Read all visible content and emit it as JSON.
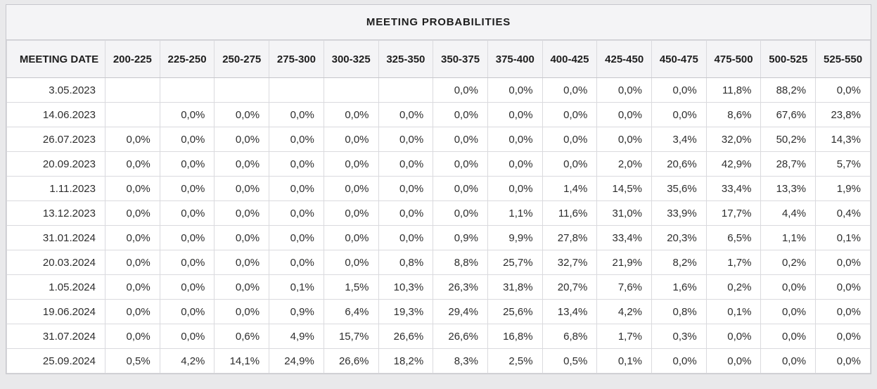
{
  "panel": {
    "title": "MEETING PROBABILITIES"
  },
  "colors": {
    "mode_highlight_cyan": "#c9eef7",
    "band_highlight_yellow": "#f5f2d2",
    "header_background": "#f4f4f6",
    "page_background": "#e9e9eb"
  },
  "table": {
    "date_column_header": "MEETING DATE",
    "rate_range_headers": [
      "200-225",
      "225-250",
      "250-275",
      "275-300",
      "300-325",
      "325-350",
      "350-375",
      "375-400",
      "400-425",
      "425-450",
      "450-475",
      "475-500",
      "500-525",
      "525-550"
    ],
    "rows": [
      {
        "date": "3.05.2023",
        "values": [
          "",
          "",
          "",
          "",
          "",
          "",
          "0,0%",
          "0,0%",
          "0,0%",
          "0,0%",
          "0,0%",
          "11,8%",
          "88,2%",
          "0,0%"
        ],
        "highlights": [
          "",
          "",
          "",
          "",
          "",
          "",
          "",
          "",
          "",
          "",
          "",
          "yellow",
          "cyan",
          ""
        ]
      },
      {
        "date": "14.06.2023",
        "values": [
          "",
          "0,0%",
          "0,0%",
          "0,0%",
          "0,0%",
          "0,0%",
          "0,0%",
          "0,0%",
          "0,0%",
          "0,0%",
          "0,0%",
          "8,6%",
          "67,6%",
          "23,8%"
        ],
        "highlights": [
          "",
          "",
          "",
          "",
          "",
          "",
          "",
          "",
          "",
          "",
          "",
          "yellow",
          "cyan",
          ""
        ]
      },
      {
        "date": "26.07.2023",
        "values": [
          "0,0%",
          "0,0%",
          "0,0%",
          "0,0%",
          "0,0%",
          "0,0%",
          "0,0%",
          "0,0%",
          "0,0%",
          "0,0%",
          "3,4%",
          "32,0%",
          "50,2%",
          "14,3%"
        ],
        "highlights": [
          "",
          "",
          "",
          "",
          "",
          "",
          "",
          "",
          "",
          "",
          "",
          "yellow",
          "cyan",
          ""
        ]
      },
      {
        "date": "20.09.2023",
        "values": [
          "0,0%",
          "0,0%",
          "0,0%",
          "0,0%",
          "0,0%",
          "0,0%",
          "0,0%",
          "0,0%",
          "0,0%",
          "2,0%",
          "20,6%",
          "42,9%",
          "28,7%",
          "5,7%"
        ],
        "highlights": [
          "",
          "",
          "",
          "",
          "",
          "",
          "",
          "",
          "",
          "",
          "",
          "cyan",
          "",
          ""
        ]
      },
      {
        "date": "1.11.2023",
        "values": [
          "0,0%",
          "0,0%",
          "0,0%",
          "0,0%",
          "0,0%",
          "0,0%",
          "0,0%",
          "0,0%",
          "1,4%",
          "14,5%",
          "35,6%",
          "33,4%",
          "13,3%",
          "1,9%"
        ],
        "highlights": [
          "",
          "",
          "",
          "",
          "",
          "",
          "",
          "",
          "",
          "",
          "cyan",
          "yellow",
          "",
          ""
        ]
      },
      {
        "date": "13.12.2023",
        "values": [
          "0,0%",
          "0,0%",
          "0,0%",
          "0,0%",
          "0,0%",
          "0,0%",
          "0,0%",
          "1,1%",
          "11,6%",
          "31,0%",
          "33,9%",
          "17,7%",
          "4,4%",
          "0,4%"
        ],
        "highlights": [
          "",
          "",
          "",
          "",
          "",
          "",
          "",
          "",
          "",
          "",
          "cyan",
          "yellow",
          "",
          ""
        ]
      },
      {
        "date": "31.01.2024",
        "values": [
          "0,0%",
          "0,0%",
          "0,0%",
          "0,0%",
          "0,0%",
          "0,0%",
          "0,9%",
          "9,9%",
          "27,8%",
          "33,4%",
          "20,3%",
          "6,5%",
          "1,1%",
          "0,1%"
        ],
        "highlights": [
          "",
          "",
          "",
          "",
          "",
          "",
          "",
          "",
          "",
          "cyan",
          "yellow",
          "yellow",
          "",
          ""
        ]
      },
      {
        "date": "20.03.2024",
        "values": [
          "0,0%",
          "0,0%",
          "0,0%",
          "0,0%",
          "0,0%",
          "0,8%",
          "8,8%",
          "25,7%",
          "32,7%",
          "21,9%",
          "8,2%",
          "1,7%",
          "0,2%",
          "0,0%"
        ],
        "highlights": [
          "",
          "",
          "",
          "",
          "",
          "",
          "",
          "",
          "cyan",
          "yellow",
          "yellow",
          "yellow",
          "",
          ""
        ]
      },
      {
        "date": "1.05.2024",
        "values": [
          "0,0%",
          "0,0%",
          "0,0%",
          "0,1%",
          "1,5%",
          "10,3%",
          "26,3%",
          "31,8%",
          "20,7%",
          "7,6%",
          "1,6%",
          "0,2%",
          "0,0%",
          "0,0%"
        ],
        "highlights": [
          "",
          "",
          "",
          "",
          "",
          "",
          "",
          "cyan",
          "yellow",
          "yellow",
          "yellow",
          "yellow",
          "",
          ""
        ]
      },
      {
        "date": "19.06.2024",
        "values": [
          "0,0%",
          "0,0%",
          "0,0%",
          "0,9%",
          "6,4%",
          "19,3%",
          "29,4%",
          "25,6%",
          "13,4%",
          "4,2%",
          "0,8%",
          "0,1%",
          "0,0%",
          "0,0%"
        ],
        "highlights": [
          "",
          "",
          "",
          "",
          "",
          "",
          "cyan",
          "yellow",
          "yellow",
          "yellow",
          "yellow",
          "yellow",
          "",
          ""
        ]
      },
      {
        "date": "31.07.2024",
        "values": [
          "0,0%",
          "0,0%",
          "0,6%",
          "4,9%",
          "15,7%",
          "26,6%",
          "26,6%",
          "16,8%",
          "6,8%",
          "1,7%",
          "0,3%",
          "0,0%",
          "0,0%",
          "0,0%"
        ],
        "highlights": [
          "",
          "",
          "",
          "",
          "",
          "",
          "cyan",
          "yellow",
          "yellow",
          "yellow",
          "yellow",
          "yellow",
          "",
          ""
        ]
      },
      {
        "date": "25.09.2024",
        "values": [
          "0,5%",
          "4,2%",
          "14,1%",
          "24,9%",
          "26,6%",
          "18,2%",
          "8,3%",
          "2,5%",
          "0,5%",
          "0,1%",
          "0,0%",
          "0,0%",
          "0,0%",
          "0,0%"
        ],
        "highlights": [
          "",
          "",
          "",
          "",
          "cyan",
          "yellow",
          "yellow",
          "yellow",
          "yellow",
          "yellow",
          "yellow",
          "yellow",
          "",
          ""
        ]
      }
    ]
  }
}
